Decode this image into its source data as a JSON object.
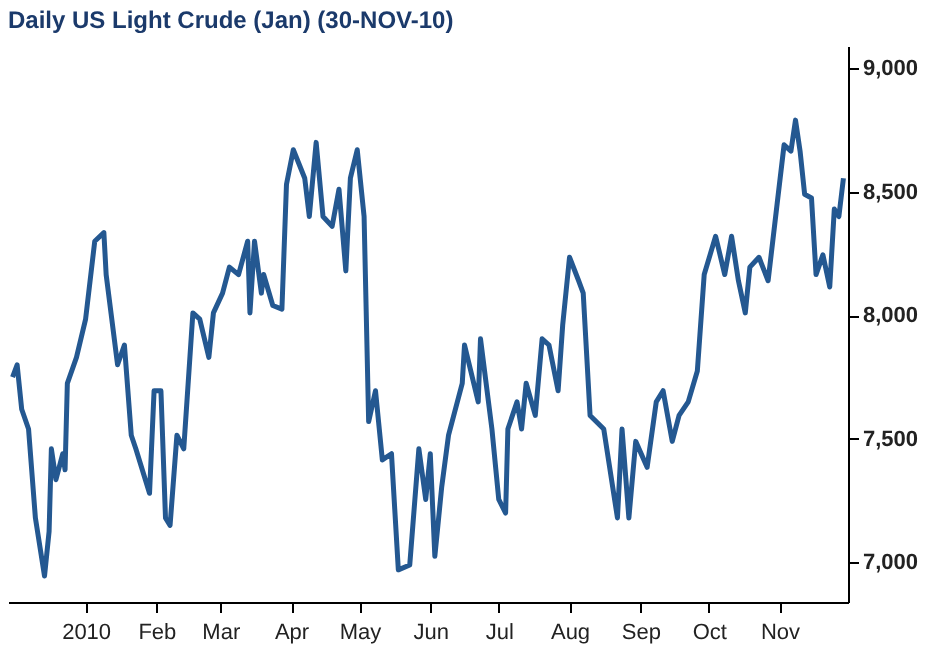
{
  "chart_data": {
    "type": "line",
    "title": "Daily US Light Crude (Jan) (30-NOV-10)",
    "x": [
      "2009-11-30",
      "2009-12-02",
      "2009-12-04",
      "2009-12-07",
      "2009-12-10",
      "2009-12-14",
      "2009-12-16",
      "2009-12-17",
      "2009-12-19",
      "2009-12-22",
      "2009-12-23",
      "2009-12-24",
      "2009-12-28",
      "2010-01-01",
      "2010-01-05",
      "2010-01-09",
      "2010-01-10",
      "2010-01-15",
      "2010-01-18",
      "2010-01-21",
      "2010-01-23",
      "2010-01-29",
      "2010-01-31",
      "2010-02-03",
      "2010-02-05",
      "2010-02-07",
      "2010-02-10",
      "2010-02-13",
      "2010-02-17",
      "2010-02-20",
      "2010-02-24",
      "2010-02-26",
      "2010-03-02",
      "2010-03-05",
      "2010-03-09",
      "2010-03-13",
      "2010-03-14",
      "2010-03-16",
      "2010-03-19",
      "2010-03-20",
      "2010-03-24",
      "2010-03-28",
      "2010-03-30",
      "2010-04-02",
      "2010-04-07",
      "2010-04-09",
      "2010-04-12",
      "2010-04-15",
      "2010-04-19",
      "2010-04-22",
      "2010-04-25",
      "2010-04-27",
      "2010-04-30",
      "2010-05-03",
      "2010-05-05",
      "2010-05-08",
      "2010-05-11",
      "2010-05-15",
      "2010-05-18",
      "2010-05-23",
      "2010-05-27",
      "2010-05-30",
      "2010-06-01",
      "2010-06-03",
      "2010-06-06",
      "2010-06-09",
      "2010-06-15",
      "2010-06-16",
      "2010-06-22",
      "2010-06-23",
      "2010-06-28",
      "2010-07-01",
      "2010-07-04",
      "2010-07-05",
      "2010-07-09",
      "2010-07-11",
      "2010-07-13",
      "2010-07-17",
      "2010-07-20",
      "2010-07-23",
      "2010-07-27",
      "2010-07-29",
      "2010-08-01",
      "2010-08-05",
      "2010-08-07",
      "2010-08-10",
      "2010-08-16",
      "2010-08-22",
      "2010-08-24",
      "2010-08-27",
      "2010-08-30",
      "2010-09-04",
      "2010-09-08",
      "2010-09-11",
      "2010-09-15",
      "2010-09-18",
      "2010-09-22",
      "2010-09-26",
      "2010-09-29",
      "2010-10-04",
      "2010-10-08",
      "2010-10-11",
      "2010-10-14",
      "2010-10-17",
      "2010-10-19",
      "2010-10-23",
      "2010-10-27",
      "2010-10-31",
      "2010-11-03",
      "2010-11-06",
      "2010-11-08",
      "2010-11-10",
      "2010-11-12",
      "2010-11-15",
      "2010-11-17",
      "2010-11-20",
      "2010-11-23",
      "2010-11-25",
      "2010-11-27",
      "2010-11-29"
    ],
    "series": [
      {
        "color": "#245891",
        "values": [
          7750,
          7800,
          7620,
          7540,
          7180,
          6945,
          7125,
          7460,
          7335,
          7440,
          7375,
          7725,
          7830,
          7985,
          8300,
          8335,
          8165,
          7800,
          7880,
          7515,
          7460,
          7280,
          7695,
          7695,
          7180,
          7150,
          7515,
          7460,
          8010,
          7985,
          7830,
          8010,
          8090,
          8195,
          8165,
          8300,
          8010,
          8300,
          8090,
          8165,
          8040,
          8025,
          8530,
          8670,
          8555,
          8400,
          8700,
          8400,
          8360,
          8510,
          8180,
          8555,
          8670,
          8400,
          7570,
          7695,
          7415,
          7440,
          6970,
          6990,
          7460,
          7255,
          7440,
          7025,
          7305,
          7515,
          7725,
          7880,
          7650,
          7905,
          7540,
          7255,
          7200,
          7540,
          7650,
          7540,
          7725,
          7595,
          7905,
          7880,
          7695,
          7960,
          8235,
          8140,
          8090,
          7595,
          7540,
          7180,
          7540,
          7180,
          7490,
          7385,
          7650,
          7695,
          7490,
          7595,
          7650,
          7775,
          8165,
          8320,
          8165,
          8320,
          8140,
          8010,
          8195,
          8235,
          8140,
          8455,
          8690,
          8665,
          8790,
          8665,
          8490,
          8475,
          8165,
          8245,
          8115,
          8430,
          8400,
          8555
        ]
      }
    ],
    "xlim": [
      "2009-11-28",
      "2010-12-01"
    ],
    "xticks": [
      {
        "value": "2010-01-01",
        "label": "2010"
      },
      {
        "value": "2010-02-01",
        "label": "Feb"
      },
      {
        "value": "2010-03-01",
        "label": "Mar"
      },
      {
        "value": "2010-04-01",
        "label": "Apr"
      },
      {
        "value": "2010-05-01",
        "label": "May"
      },
      {
        "value": "2010-06-01",
        "label": "Jun"
      },
      {
        "value": "2010-07-01",
        "label": "Jul"
      },
      {
        "value": "2010-08-01",
        "label": "Aug"
      },
      {
        "value": "2010-09-01",
        "label": "Sep"
      },
      {
        "value": "2010-10-01",
        "label": "Oct"
      },
      {
        "value": "2010-11-01",
        "label": "Nov"
      }
    ],
    "ylim": [
      6840,
      9090
    ],
    "yticks": [
      {
        "value": 7000,
        "label": "7,000"
      },
      {
        "value": 7500,
        "label": "7,500"
      },
      {
        "value": 8000,
        "label": "8,000"
      },
      {
        "value": 8500,
        "label": "8,500"
      },
      {
        "value": 9000,
        "label": "9,000"
      }
    ],
    "grid": false,
    "legend": false,
    "line_style": "solid",
    "marker": "none"
  }
}
